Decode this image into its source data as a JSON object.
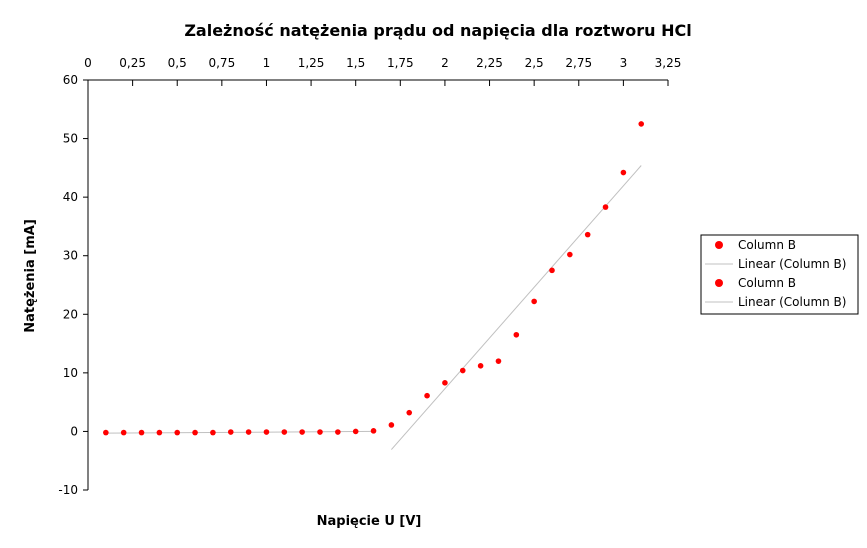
{
  "chart_data": {
    "type": "scatter",
    "title": "Zależność natężenia prądu od napięcia dla roztworu HCl",
    "xlabel": "Napięcie U [V]",
    "ylabel": "Natężenia [mA]",
    "xlim": [
      0,
      3.25
    ],
    "ylim": [
      -10,
      60
    ],
    "x_ticks": [
      "0",
      "0,25",
      "0,5",
      "0,75",
      "1",
      "1,25",
      "1,5",
      "1,75",
      "2",
      "2,25",
      "2,5",
      "2,75",
      "3",
      "3,25"
    ],
    "y_ticks": [
      "60",
      "50",
      "40",
      "30",
      "20",
      "10",
      "0",
      "-10"
    ],
    "x_axis_position": "top",
    "grid": false,
    "legend_position": "right",
    "marker_color": "#ff0000",
    "fit_color": "#c0c0c0",
    "series": [
      {
        "name": "Column B",
        "kind": "points",
        "x": [
          0.1,
          0.2,
          0.3,
          0.4,
          0.5,
          0.6,
          0.7,
          0.8,
          0.9,
          1.0,
          1.1,
          1.2,
          1.3,
          1.4,
          1.5,
          1.6
        ],
        "y": [
          -0.2,
          -0.2,
          -0.2,
          -0.2,
          -0.2,
          -0.2,
          -0.2,
          -0.1,
          -0.1,
          -0.1,
          -0.1,
          -0.1,
          -0.1,
          -0.1,
          0.0,
          0.1
        ]
      },
      {
        "name": "Linear (Column B)",
        "kind": "line",
        "x": [
          0.1,
          1.6
        ],
        "y": [
          -0.3,
          0.0
        ]
      },
      {
        "name": "Column B",
        "kind": "points",
        "x": [
          1.7,
          1.8,
          1.9,
          2.0,
          2.1,
          2.2,
          2.3,
          2.4,
          2.5,
          2.6,
          2.7,
          2.8,
          2.9,
          3.0,
          3.1
        ],
        "y": [
          1.1,
          3.2,
          6.1,
          8.3,
          10.4,
          11.2,
          12.0,
          16.5,
          22.2,
          27.5,
          30.2,
          33.6,
          38.3,
          44.2,
          52.5
        ]
      },
      {
        "name": "Linear (Column B)",
        "kind": "line",
        "x": [
          1.7,
          3.1
        ],
        "y": [
          -3.1,
          45.4
        ]
      }
    ]
  }
}
